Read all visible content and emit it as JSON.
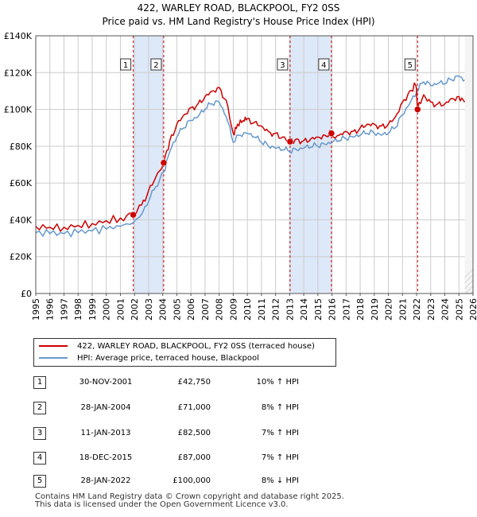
{
  "title_line1": "422, WARLEY ROAD, BLACKPOOL, FY2 0SS",
  "title_line2": "Price paid vs. HM Land Registry's House Price Index (HPI)",
  "legend": {
    "property": "422, WARLEY ROAD, BLACKPOOL, FY2 0SS (terraced house)",
    "hpi": "HPI: Average price, terraced house, Blackpool"
  },
  "colors": {
    "property": "#cc0000",
    "hpi": "#6699cc",
    "shade": "#dde8f8",
    "grid": "#cccccc"
  },
  "sales": [
    {
      "num": "1",
      "date": "30-NOV-2001",
      "price": "£42,750",
      "hpi": "10% ↑ HPI"
    },
    {
      "num": "2",
      "date": "28-JAN-2004",
      "price": "£71,000",
      "hpi": "8% ↑ HPI"
    },
    {
      "num": "3",
      "date": "11-JAN-2013",
      "price": "£82,500",
      "hpi": "7% ↑ HPI"
    },
    {
      "num": "4",
      "date": "18-DEC-2015",
      "price": "£87,000",
      "hpi": "7% ↑ HPI"
    },
    {
      "num": "5",
      "date": "28-JAN-2022",
      "price": "£100,000",
      "hpi": "8% ↓ HPI"
    }
  ],
  "footer_line1": "Contains HM Land Registry data © Crown copyright and database right 2025.",
  "footer_line2": "This data is licensed under the Open Government Licence v3.0.",
  "chart_data": {
    "type": "line",
    "title": "422, WARLEY ROAD, BLACKPOOL, FY2 0SS — Price paid vs. HM Land Registry's House Price Index (HPI)",
    "xlabel": "",
    "ylabel": "",
    "xlim": [
      1995,
      2026
    ],
    "ylim": [
      0,
      140000
    ],
    "grid": true,
    "legend_position": "below",
    "x_ticks": [
      "1995",
      "1996",
      "1997",
      "1998",
      "1999",
      "2000",
      "2001",
      "2002",
      "2003",
      "2004",
      "2005",
      "2006",
      "2007",
      "2008",
      "2009",
      "2010",
      "2011",
      "2012",
      "2013",
      "2014",
      "2015",
      "2016",
      "2017",
      "2018",
      "2019",
      "2020",
      "2021",
      "2022",
      "2023",
      "2024",
      "2025",
      "2026"
    ],
    "y_ticks": [
      {
        "value": 0,
        "label": "£0"
      },
      {
        "value": 20000,
        "label": "£20K"
      },
      {
        "value": 40000,
        "label": "£40K"
      },
      {
        "value": 60000,
        "label": "£60K"
      },
      {
        "value": 80000,
        "label": "£80K"
      },
      {
        "value": 100000,
        "label": "£100K"
      },
      {
        "value": 120000,
        "label": "£120K"
      },
      {
        "value": 140000,
        "label": "£140K"
      }
    ],
    "shaded_periods": [
      [
        2001.91,
        2004.07
      ],
      [
        2013.03,
        2015.96
      ]
    ],
    "hatched_after": 2025.4,
    "sale_markers": [
      {
        "label": "1",
        "x": 2001.91,
        "y": 42750
      },
      {
        "label": "2",
        "x": 2004.07,
        "y": 71000
      },
      {
        "label": "3",
        "x": 2013.03,
        "y": 82500
      },
      {
        "label": "4",
        "x": 2015.96,
        "y": 87000
      },
      {
        "label": "5",
        "x": 2022.07,
        "y": 100000
      }
    ],
    "series": [
      {
        "name": "422, WARLEY ROAD, BLACKPOOL, FY2 0SS (terraced house)",
        "x": [
          1995,
          1996,
          1997,
          1998,
          1999,
          2000,
          2001,
          2001.91,
          2002.5,
          2003,
          2003.5,
          2004.07,
          2004.5,
          2005,
          2005.5,
          2006,
          2006.5,
          2007,
          2007.5,
          2008,
          2008.5,
          2009,
          2009.3,
          2009.7,
          2010,
          2010.5,
          2011,
          2011.5,
          2012,
          2012.5,
          2013.03,
          2013.5,
          2014,
          2014.5,
          2015,
          2015.5,
          2015.96,
          2016.5,
          2017,
          2017.5,
          2018,
          2018.5,
          2019,
          2019.5,
          2020,
          2020.5,
          2021,
          2021.5,
          2021.95,
          2022.07,
          2022.5,
          2023,
          2023.5,
          2024,
          2024.5,
          2025,
          2025.4
        ],
        "values": [
          36500,
          36000,
          36000,
          37000,
          38000,
          39500,
          41000,
          42750,
          48000,
          56000,
          63000,
          71000,
          83000,
          92000,
          97000,
          101000,
          103000,
          107000,
          110000,
          112000,
          105000,
          87000,
          92000,
          94000,
          95000,
          93000,
          91000,
          88000,
          87000,
          85000,
          82500,
          84000,
          83000,
          84000,
          85000,
          86000,
          87000,
          86000,
          88000,
          88000,
          90000,
          92000,
          92000,
          91000,
          92000,
          96000,
          104000,
          110000,
          113000,
          100000,
          108000,
          104000,
          103000,
          103000,
          106000,
          107000,
          104000
        ]
      },
      {
        "name": "HPI: Average price, terraced house, Blackpool",
        "x": [
          1995,
          1996,
          1997,
          1998,
          1999,
          2000,
          2001,
          2001.91,
          2002.5,
          2003,
          2003.5,
          2004.07,
          2004.5,
          2005,
          2005.5,
          2006,
          2006.5,
          2007,
          2007.5,
          2008,
          2008.5,
          2009,
          2009.5,
          2010,
          2010.5,
          2011,
          2011.5,
          2012,
          2012.5,
          2013,
          2013.5,
          2014,
          2014.5,
          2015,
          2015.5,
          2016,
          2016.5,
          2017,
          2017.5,
          2018,
          2018.5,
          2019,
          2019.5,
          2020,
          2020.5,
          2021,
          2021.5,
          2022,
          2022.5,
          2023,
          2023.5,
          2024,
          2024.5,
          2025,
          2025.4
        ],
        "values": [
          33000,
          32500,
          32500,
          33000,
          34000,
          35000,
          36500,
          38500,
          43000,
          50000,
          58000,
          66000,
          77000,
          85000,
          90000,
          94000,
          96000,
          100000,
          103000,
          104000,
          96000,
          82000,
          86000,
          87000,
          85000,
          82000,
          80000,
          79000,
          78000,
          77000,
          78000,
          79000,
          79500,
          80000,
          81000,
          82000,
          83000,
          84000,
          85000,
          86000,
          87000,
          87000,
          86000,
          87000,
          90000,
          97000,
          103000,
          109000,
          115000,
          113000,
          114000,
          114000,
          116000,
          118000,
          116000
        ]
      }
    ]
  }
}
